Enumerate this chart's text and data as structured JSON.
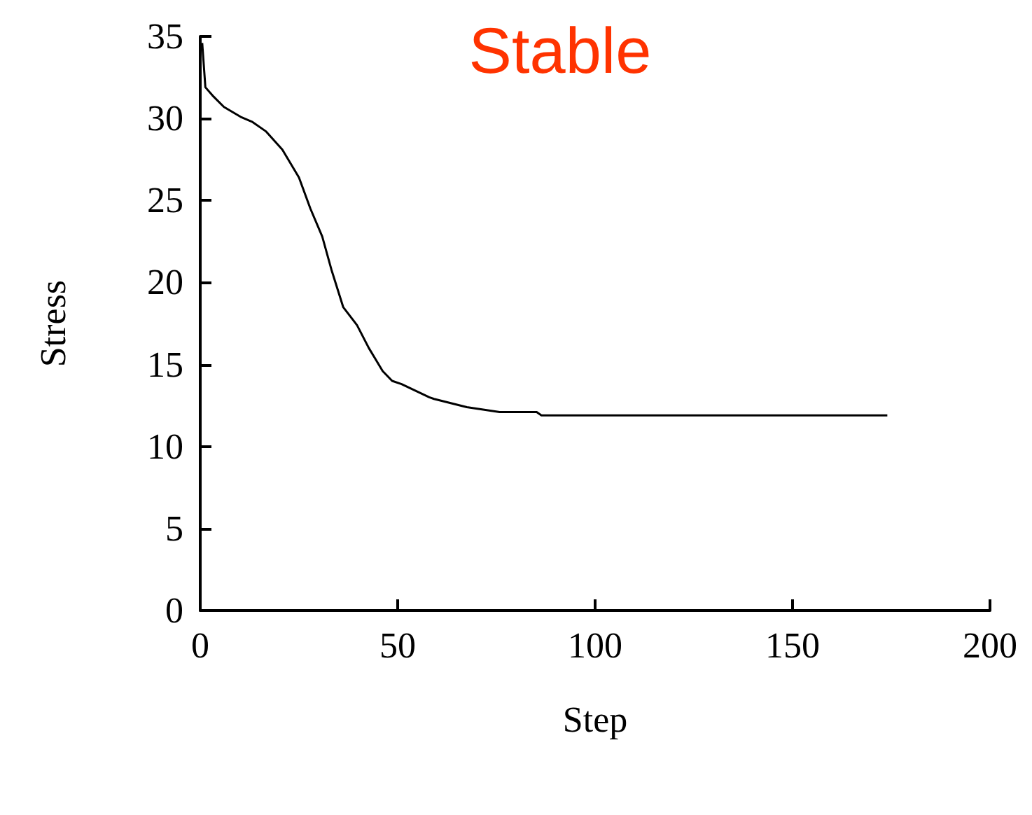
{
  "chart_data": {
    "type": "line",
    "title": "Stable",
    "xlabel": "Step",
    "ylabel": "Stress",
    "x": [
      0.5,
      1.3,
      3.1,
      6,
      10.2,
      13.1,
      16.7,
      20.8,
      25,
      27.9,
      30.9,
      33.2,
      36.2,
      39.7,
      42.7,
      46.2,
      48.6,
      51,
      58,
      59.2,
      67.5,
      75.8,
      85.2,
      86.4,
      174
    ],
    "series": [
      {
        "color": "#000000",
        "values": [
          34.6,
          31.9,
          31.4,
          30.7,
          30.1,
          29.8,
          29.2,
          28.1,
          26.4,
          24.5,
          22.8,
          20.8,
          18.5,
          17.4,
          16.0,
          14.6,
          14.0,
          13.8,
          13.0,
          12.9,
          12.4,
          12.1,
          12.1,
          11.9,
          11.9
        ]
      }
    ],
    "xlim": [
      0,
      200
    ],
    "ylim": [
      0,
      35
    ],
    "xticks": [
      0,
      50,
      100,
      150,
      200
    ],
    "yticks": [
      0,
      5,
      10,
      15,
      20,
      25,
      30,
      35
    ],
    "grid": false,
    "marker": "none",
    "line_style": "solid"
  }
}
